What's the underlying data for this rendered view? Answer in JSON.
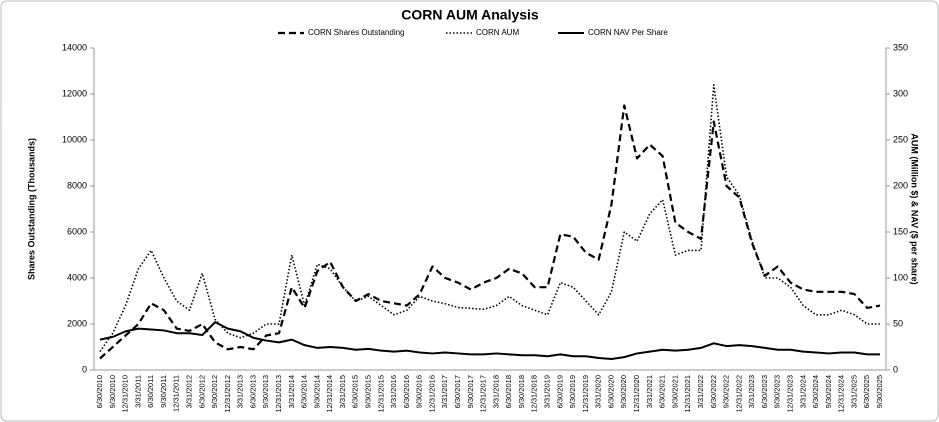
{
  "chart_data": {
    "type": "line",
    "title": "CORN AUM Analysis",
    "y_label": "Shares Outstanding (Thousands)",
    "y2_label": "AUM (Million $) & NAV ($ per share)",
    "categories": [
      "6/30/2010",
      "9/30/2010",
      "12/31/2010",
      "3/31/2011",
      "6/30/2011",
      "9/30/2011",
      "12/31/2011",
      "3/31/2012",
      "6/30/2012",
      "9/30/2012",
      "12/31/2012",
      "3/31/2013",
      "6/30/2013",
      "9/30/2013",
      "12/31/2013",
      "3/31/2014",
      "6/30/2014",
      "9/30/2014",
      "12/31/2014",
      "3/31/2015",
      "6/30/2015",
      "9/30/2015",
      "12/31/2015",
      "3/31/2016",
      "6/30/2016",
      "9/30/2016",
      "12/31/2016",
      "3/31/2017",
      "6/30/2017",
      "9/30/2017",
      "12/31/2017",
      "3/31/2018",
      "6/30/2018",
      "9/30/2018",
      "12/31/2018",
      "3/31/2019",
      "6/30/2019",
      "9/30/2019",
      "12/31/2019",
      "3/31/2020",
      "6/30/2020",
      "9/30/2020",
      "12/31/2020",
      "3/31/2021",
      "6/30/2021",
      "9/30/2021",
      "12/31/2021",
      "3/31/2022",
      "6/30/2022",
      "9/30/2022",
      "12/31/2022",
      "3/31/2023",
      "6/30/2023",
      "9/30/2023",
      "12/31/2023",
      "3/31/2024",
      "6/30/2024",
      "9/30/2024",
      "12/31/2024",
      "3/31/2025",
      "6/30/2025",
      "9/30/2025"
    ],
    "series": [
      {
        "name": "CORN Shares Outstanding",
        "color": "#000000",
        "style": "dashed",
        "axis": "y",
        "values": [
          500,
          1000,
          1500,
          2000,
          2900,
          2600,
          1800,
          1700,
          2000,
          1200,
          900,
          1000,
          900,
          1500,
          1600,
          3600,
          2700,
          4300,
          4700,
          3600,
          3000,
          3300,
          3000,
          2900,
          2800,
          3300,
          4500,
          4000,
          3800,
          3500,
          3800,
          4000,
          4400,
          4200,
          3600,
          3600,
          5900,
          5800,
          5100,
          4800,
          7200,
          11500,
          9200,
          9800,
          9300,
          6400,
          6000,
          5700,
          10800,
          8000,
          7500,
          5500,
          4100,
          4500,
          3800,
          3500,
          3400,
          3400,
          3400,
          3300,
          2700,
          2800
        ]
      },
      {
        "name": "CORN AUM",
        "color": "#000000",
        "style": "dotted",
        "axis": "y2",
        "values": [
          20,
          40,
          70,
          110,
          130,
          100,
          75,
          65,
          105,
          55,
          40,
          35,
          40,
          50,
          50,
          125,
          70,
          115,
          110,
          90,
          75,
          80,
          70,
          60,
          65,
          80,
          75,
          72,
          68,
          67,
          66,
          70,
          80,
          70,
          65,
          60,
          95,
          90,
          75,
          60,
          85,
          150,
          140,
          170,
          185,
          125,
          130,
          130,
          310,
          210,
          190,
          140,
          100,
          100,
          90,
          70,
          60,
          60,
          65,
          60,
          50,
          50
        ]
      },
      {
        "name": "CORN NAV Per Share",
        "color": "#000000",
        "style": "solid",
        "axis": "y2",
        "values": [
          33,
          36,
          42,
          45,
          44,
          43,
          40,
          40,
          38,
          52,
          45,
          42,
          35,
          32,
          30,
          33,
          27,
          24,
          25,
          24,
          22,
          23,
          21,
          20,
          21,
          19,
          18,
          19,
          18,
          17,
          17,
          18,
          17,
          16,
          16,
          15,
          17,
          15,
          15,
          13,
          12,
          14,
          18,
          20,
          22,
          21,
          22,
          24,
          29,
          26,
          27,
          26,
          24,
          22,
          22,
          20,
          19,
          18,
          19,
          19,
          17,
          17
        ]
      }
    ],
    "ylim": [
      0,
      14000
    ],
    "yticks": [
      0,
      2000,
      4000,
      6000,
      8000,
      10000,
      12000,
      14000
    ],
    "y2lim": [
      0,
      350
    ],
    "y2ticks": [
      0,
      50,
      100,
      150,
      200,
      250,
      300,
      350
    ],
    "grid": false,
    "legend": "top"
  }
}
